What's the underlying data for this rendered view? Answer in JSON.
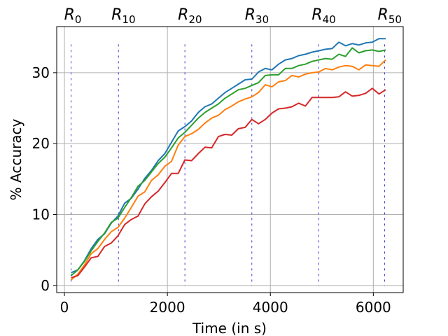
{
  "chart_data": {
    "type": "line",
    "xlabel": "Time (in s)",
    "ylabel": "% Accuracy",
    "xlim": [
      -150,
      6580
    ],
    "ylim": [
      -1.0,
      36.5
    ],
    "xticks": [
      0,
      2000,
      4000,
      6000
    ],
    "yticks": [
      0,
      10,
      20,
      30
    ],
    "grid": true,
    "legend": "none",
    "round_markers": {
      "prefix": "R",
      "items": [
        {
          "label": "0",
          "x": 130
        },
        {
          "label": "10",
          "x": 1050
        },
        {
          "label": "20",
          "x": 2340
        },
        {
          "label": "30",
          "x": 3640
        },
        {
          "label": "40",
          "x": 4940
        },
        {
          "label": "50",
          "x": 6220
        }
      ],
      "line_top": 34,
      "color": "#3b3bd6"
    },
    "series": [
      {
        "color": "#1f77b4",
        "points": [
          [
            130,
            1.8
          ],
          [
            260,
            2.2
          ],
          [
            390,
            3.5
          ],
          [
            520,
            5.2
          ],
          [
            650,
            6.5
          ],
          [
            780,
            7.3
          ],
          [
            910,
            8.8
          ],
          [
            1040,
            9.8
          ],
          [
            1170,
            11.6
          ],
          [
            1300,
            12.3
          ],
          [
            1430,
            13.6
          ],
          [
            1560,
            15.1
          ],
          [
            1690,
            16.2
          ],
          [
            1820,
            17.6
          ],
          [
            1950,
            18.6
          ],
          [
            2080,
            20.2
          ],
          [
            2210,
            21.8
          ],
          [
            2340,
            22.4
          ],
          [
            2470,
            23.2
          ],
          [
            2600,
            24.4
          ],
          [
            2730,
            25.2
          ],
          [
            2860,
            25.6
          ],
          [
            2990,
            26.4
          ],
          [
            3120,
            27.2
          ],
          [
            3250,
            27.8
          ],
          [
            3380,
            28.4
          ],
          [
            3510,
            29.0
          ],
          [
            3640,
            29.1
          ],
          [
            3770,
            30.1
          ],
          [
            3900,
            30.6
          ],
          [
            4030,
            30.4
          ],
          [
            4160,
            31.2
          ],
          [
            4290,
            31.8
          ],
          [
            4420,
            32.0
          ],
          [
            4550,
            32.4
          ],
          [
            4680,
            32.6
          ],
          [
            4810,
            32.9
          ],
          [
            4940,
            33.1
          ],
          [
            5070,
            33.3
          ],
          [
            5200,
            33.4
          ],
          [
            5330,
            34.3
          ],
          [
            5460,
            33.8
          ],
          [
            5590,
            34.1
          ],
          [
            5720,
            33.9
          ],
          [
            5850,
            34.2
          ],
          [
            5980,
            34.3
          ],
          [
            6110,
            34.8
          ],
          [
            6240,
            34.8
          ]
        ]
      },
      {
        "color": "#ff7f0e",
        "points": [
          [
            130,
            0.8
          ],
          [
            260,
            1.6
          ],
          [
            390,
            2.9
          ],
          [
            520,
            4.5
          ],
          [
            650,
            5.2
          ],
          [
            780,
            6.5
          ],
          [
            910,
            7.6
          ],
          [
            1040,
            8.2
          ],
          [
            1170,
            9.5
          ],
          [
            1300,
            11.0
          ],
          [
            1430,
            12.6
          ],
          [
            1560,
            13.2
          ],
          [
            1690,
            14.8
          ],
          [
            1820,
            15.6
          ],
          [
            1950,
            16.8
          ],
          [
            2080,
            17.5
          ],
          [
            2210,
            19.8
          ],
          [
            2340,
            21.0
          ],
          [
            2470,
            21.4
          ],
          [
            2600,
            22.0
          ],
          [
            2730,
            22.9
          ],
          [
            2860,
            23.6
          ],
          [
            2990,
            24.0
          ],
          [
            3120,
            24.8
          ],
          [
            3250,
            25.3
          ],
          [
            3380,
            25.9
          ],
          [
            3510,
            26.3
          ],
          [
            3640,
            26.6
          ],
          [
            3770,
            27.2
          ],
          [
            3900,
            28.3
          ],
          [
            4030,
            28.0
          ],
          [
            4160,
            28.7
          ],
          [
            4290,
            28.9
          ],
          [
            4420,
            29.6
          ],
          [
            4550,
            29.4
          ],
          [
            4680,
            29.8
          ],
          [
            4810,
            30.0
          ],
          [
            4940,
            30.1
          ],
          [
            5070,
            30.6
          ],
          [
            5200,
            30.4
          ],
          [
            5330,
            30.8
          ],
          [
            5460,
            31.0
          ],
          [
            5590,
            30.9
          ],
          [
            5720,
            30.4
          ],
          [
            5850,
            31.1
          ],
          [
            5980,
            31.0
          ],
          [
            6110,
            30.9
          ],
          [
            6240,
            31.8
          ]
        ]
      },
      {
        "color": "#2ca02c",
        "points": [
          [
            130,
            1.4
          ],
          [
            260,
            2.2
          ],
          [
            390,
            3.4
          ],
          [
            520,
            4.9
          ],
          [
            650,
            6.2
          ],
          [
            780,
            7.4
          ],
          [
            910,
            8.9
          ],
          [
            1040,
            9.5
          ],
          [
            1170,
            11.0
          ],
          [
            1300,
            12.4
          ],
          [
            1430,
            14.0
          ],
          [
            1560,
            14.8
          ],
          [
            1690,
            16.0
          ],
          [
            1820,
            17.2
          ],
          [
            1950,
            18.1
          ],
          [
            2080,
            19.4
          ],
          [
            2210,
            20.8
          ],
          [
            2340,
            21.6
          ],
          [
            2470,
            22.6
          ],
          [
            2600,
            23.6
          ],
          [
            2730,
            24.4
          ],
          [
            2860,
            25.0
          ],
          [
            2990,
            25.6
          ],
          [
            3120,
            26.4
          ],
          [
            3250,
            27.0
          ],
          [
            3380,
            27.6
          ],
          [
            3510,
            27.8
          ],
          [
            3640,
            28.2
          ],
          [
            3770,
            28.6
          ],
          [
            3900,
            29.6
          ],
          [
            4030,
            29.7
          ],
          [
            4160,
            29.7
          ],
          [
            4290,
            30.6
          ],
          [
            4420,
            30.6
          ],
          [
            4550,
            31.0
          ],
          [
            4680,
            31.2
          ],
          [
            4810,
            31.6
          ],
          [
            4940,
            31.8
          ],
          [
            5070,
            32.0
          ],
          [
            5200,
            31.9
          ],
          [
            5330,
            32.6
          ],
          [
            5460,
            32.3
          ],
          [
            5590,
            33.5
          ],
          [
            5720,
            32.8
          ],
          [
            5850,
            33.1
          ],
          [
            5980,
            33.2
          ],
          [
            6110,
            33.0
          ],
          [
            6240,
            33.2
          ]
        ]
      },
      {
        "color": "#d62728",
        "points": [
          [
            130,
            1.1
          ],
          [
            260,
            1.4
          ],
          [
            390,
            2.6
          ],
          [
            520,
            3.9
          ],
          [
            650,
            4.1
          ],
          [
            780,
            5.5
          ],
          [
            910,
            6.0
          ],
          [
            1040,
            7.0
          ],
          [
            1170,
            8.6
          ],
          [
            1300,
            9.3
          ],
          [
            1430,
            9.8
          ],
          [
            1560,
            11.5
          ],
          [
            1690,
            12.5
          ],
          [
            1820,
            13.3
          ],
          [
            1950,
            14.5
          ],
          [
            2080,
            15.8
          ],
          [
            2210,
            15.8
          ],
          [
            2340,
            17.7
          ],
          [
            2470,
            17.6
          ],
          [
            2600,
            18.6
          ],
          [
            2730,
            19.5
          ],
          [
            2860,
            19.4
          ],
          [
            2990,
            21.0
          ],
          [
            3120,
            21.3
          ],
          [
            3250,
            21.2
          ],
          [
            3380,
            22.1
          ],
          [
            3510,
            22.3
          ],
          [
            3640,
            23.4
          ],
          [
            3770,
            22.8
          ],
          [
            3900,
            23.4
          ],
          [
            4030,
            24.3
          ],
          [
            4160,
            24.9
          ],
          [
            4290,
            25.0
          ],
          [
            4420,
            25.2
          ],
          [
            4550,
            25.7
          ],
          [
            4680,
            25.3
          ],
          [
            4810,
            26.5
          ],
          [
            4940,
            26.5
          ],
          [
            5070,
            26.5
          ],
          [
            5200,
            26.5
          ],
          [
            5330,
            26.6
          ],
          [
            5460,
            27.3
          ],
          [
            5590,
            26.7
          ],
          [
            5720,
            26.8
          ],
          [
            5850,
            27.1
          ],
          [
            5980,
            27.8
          ],
          [
            6110,
            27.0
          ],
          [
            6240,
            27.6
          ]
        ]
      }
    ]
  }
}
